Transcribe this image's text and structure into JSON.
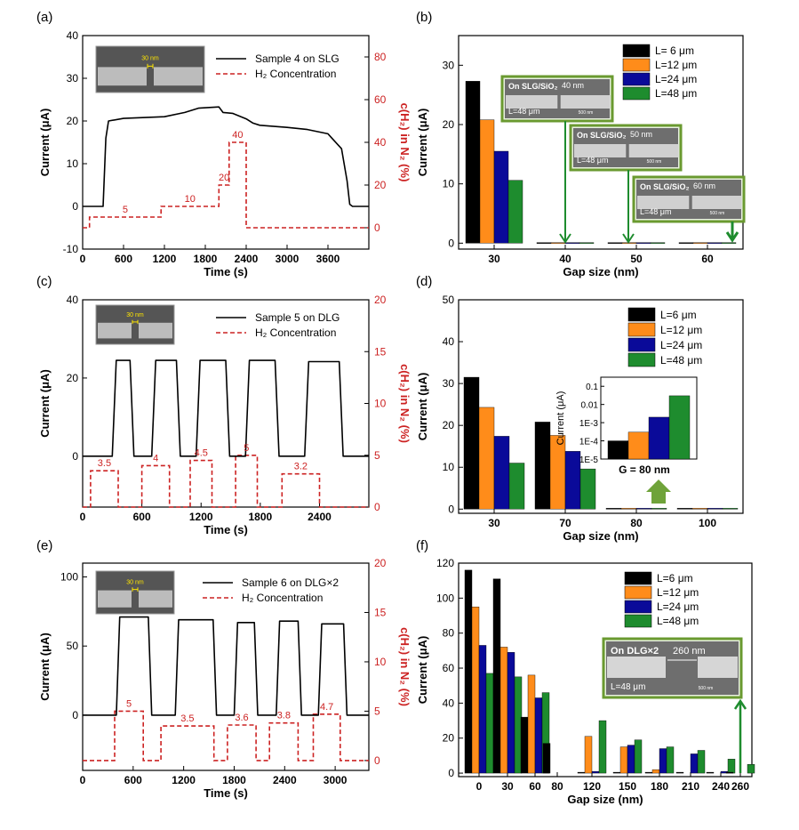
{
  "colors": {
    "axis": "#000000",
    "h2": "#cc2222",
    "black": "#000000",
    "orange": "#ff8c1a",
    "blue": "#0a0a99",
    "green": "#1e8c2e",
    "inset_border": "#6a9a30",
    "sem_bg": "#555555"
  },
  "panels": {
    "a": {
      "label": "(a)"
    },
    "b": {
      "label": "(b)"
    },
    "c": {
      "label": "(c)"
    },
    "d": {
      "label": "(d)"
    },
    "e": {
      "label": "(e)"
    },
    "f": {
      "label": "(f)"
    }
  },
  "insets": {
    "a_sem": "30 nm",
    "c_sem": "30 nm",
    "e_sem": "30 nm",
    "b1_title": "On SLG/SiO₂",
    "b1_gap": "40 nm",
    "b1_len": "L=48 μm",
    "b2_title": "On SLG/SiO₂",
    "b2_gap": "50 nm",
    "b2_len": "L=48 μm",
    "b3_title": "On SLG/SiO₂",
    "b3_gap": "60 nm",
    "b3_len": "L=48 μm",
    "f_title": "On DLG×2",
    "f_gap": "260 nm",
    "f_len": "L=48 μm",
    "scale": "500 nm"
  },
  "chart_data": [
    {
      "panel": "a",
      "type": "line",
      "xlabel": "Time (s)",
      "ylabel": "Current (μA)",
      "y2label": "c(H₂) in N₂ (%)",
      "xlim": [
        0,
        4200
      ],
      "ylim": [
        -10,
        40
      ],
      "y2lim": [
        -10,
        90
      ],
      "xticks": [
        0,
        600,
        1200,
        1800,
        2400,
        3000,
        3600
      ],
      "yticks": [
        -10,
        0,
        10,
        20,
        30,
        40
      ],
      "y2ticks": [
        0,
        20,
        40,
        60,
        80
      ],
      "legend": [
        "Sample 4 on SLG",
        "H₂ Concentration"
      ],
      "current": {
        "x": [
          0,
          300,
          340,
          380,
          600,
          1200,
          1500,
          1700,
          2000,
          2060,
          2200,
          2400,
          2500,
          2600,
          3000,
          3300,
          3600,
          3800,
          3880,
          3920,
          3960,
          4200
        ],
        "y": [
          0,
          0,
          16,
          20,
          20.6,
          21,
          22,
          23,
          23.3,
          22,
          21.8,
          20.5,
          19.5,
          19,
          18.5,
          18,
          17,
          13.5,
          6,
          0.5,
          0,
          0
        ]
      },
      "h2": {
        "x": [
          0,
          100,
          100,
          1150,
          1150,
          2000,
          2000,
          2150,
          2150,
          2400,
          2400,
          4200
        ],
        "y": [
          0,
          0,
          5,
          5,
          10,
          10,
          20,
          20,
          40,
          40,
          0,
          0
        ]
      },
      "annotations": [
        "5",
        "10",
        "20",
        "40"
      ]
    },
    {
      "panel": "b",
      "type": "bar",
      "xlabel": "Gap size (nm)",
      "ylabel": "Current (μA)",
      "categories": [
        "30",
        "40",
        "50",
        "60"
      ],
      "ylim": [
        -1,
        35
      ],
      "yticks": [
        0,
        10,
        20,
        30
      ],
      "series": [
        {
          "name": "L= 6  μm",
          "values": [
            27.3,
            0.1,
            0.1,
            0.1
          ]
        },
        {
          "name": "L=12  μm",
          "values": [
            20.8,
            0.1,
            0.1,
            0.1
          ]
        },
        {
          "name": "L=24  μm",
          "values": [
            15.5,
            0.1,
            0.1,
            0.1
          ]
        },
        {
          "name": "L=48  μm",
          "values": [
            10.6,
            0.1,
            0.1,
            0.1
          ]
        }
      ]
    },
    {
      "panel": "c",
      "type": "line",
      "xlabel": "Time (s)",
      "ylabel": "Current (μA)",
      "y2label": "c(H₂) in N₂ (%)",
      "xlim": [
        0,
        2900
      ],
      "ylim": [
        -13,
        40
      ],
      "y2lim": [
        0,
        20
      ],
      "xticks": [
        0,
        600,
        1200,
        1800,
        2400
      ],
      "yticks": [
        0,
        20,
        40
      ],
      "y2ticks": [
        0,
        5,
        10,
        15,
        20
      ],
      "legend": [
        "Sample 5 on DLG",
        "H₂ Concentration"
      ],
      "current": {
        "x": [
          0,
          300,
          340,
          480,
          520,
          700,
          740,
          950,
          990,
          1150,
          1190,
          1450,
          1490,
          1650,
          1690,
          1950,
          1990,
          2250,
          2290,
          2600,
          2640,
          2900
        ],
        "y": [
          0,
          0,
          24.5,
          24.5,
          0,
          0,
          24.5,
          24.5,
          0,
          0,
          24.5,
          24.5,
          0,
          0,
          24.5,
          24.5,
          0,
          0,
          24.2,
          24.2,
          0,
          0
        ],
        "rounded": true
      },
      "h2": {
        "x": [
          0,
          80,
          80,
          360,
          360,
          600,
          600,
          880,
          880,
          1090,
          1090,
          1310,
          1310,
          1550,
          1550,
          1770,
          1770,
          2020,
          2020,
          2400,
          2400,
          2900
        ],
        "y": [
          0,
          0,
          3.5,
          3.5,
          0,
          0,
          4,
          4,
          0,
          0,
          4.5,
          4.5,
          0,
          0,
          5,
          5,
          0,
          0,
          3.2,
          3.2,
          0,
          0
        ]
      },
      "annotations": [
        "3.5",
        "4",
        "4.5",
        "5",
        "3.2"
      ]
    },
    {
      "panel": "d",
      "type": "bar",
      "xlabel": "Gap size (nm)",
      "ylabel": "Current (μA)",
      "categories": [
        "30",
        "70",
        "80",
        "100"
      ],
      "ylim": [
        -1,
        50
      ],
      "yticks": [
        0,
        10,
        20,
        30,
        40,
        50
      ],
      "series": [
        {
          "name": "L=6  μm",
          "values": [
            31.5,
            20.8,
            0.2,
            0.2
          ]
        },
        {
          "name": "L=12  μm",
          "values": [
            24.3,
            17.6,
            0.2,
            0.2
          ]
        },
        {
          "name": "L=24  μm",
          "values": [
            17.4,
            13.8,
            0.2,
            0.2
          ]
        },
        {
          "name": "L=48  μm",
          "values": [
            11,
            9.6,
            0.2,
            0.2
          ]
        }
      ],
      "inset": {
        "type": "bar",
        "scale": "log",
        "ylabel": "Current (μA)",
        "xlabel": "G = 80 nm",
        "ylim_exp": [
          -5,
          -0.5
        ],
        "yticks": [
          "1E-5",
          "1E-4",
          "1E-3",
          "0.01",
          "0.1"
        ],
        "values": [
          0.0001,
          0.0003,
          0.002,
          0.03
        ]
      }
    },
    {
      "panel": "e",
      "type": "line",
      "xlabel": "Time (s)",
      "ylabel": "Current (μA)",
      "y2label": "c(H₂) in N₂ (%)",
      "xlim": [
        0,
        3400
      ],
      "ylim": [
        -40,
        110
      ],
      "y2lim": [
        -1,
        20
      ],
      "xticks": [
        0,
        600,
        1200,
        1800,
        2400,
        3000
      ],
      "yticks": [
        0,
        50,
        100
      ],
      "y2ticks": [
        0,
        5,
        10,
        15,
        20
      ],
      "legend": [
        "Sample 6 on DLG×2",
        "H₂ Concentration"
      ],
      "current": {
        "x": [
          0,
          400,
          440,
          780,
          820,
          1100,
          1140,
          1550,
          1590,
          1800,
          1840,
          2040,
          2080,
          2300,
          2340,
          2560,
          2600,
          2800,
          2840,
          3100,
          3140,
          3400
        ],
        "y": [
          0,
          0,
          71,
          71,
          0,
          0,
          69,
          69,
          0,
          0,
          67,
          67,
          0,
          0,
          68,
          68,
          0,
          0,
          66,
          66,
          0,
          0
        ],
        "rounded": true
      },
      "h2": {
        "x": [
          0,
          380,
          380,
          720,
          720,
          930,
          930,
          1560,
          1560,
          1720,
          1720,
          2060,
          2060,
          2220,
          2220,
          2560,
          2560,
          2740,
          2740,
          3060,
          3060,
          3400
        ],
        "y": [
          0,
          0,
          5,
          5,
          0,
          0,
          3.5,
          3.5,
          0,
          0,
          3.6,
          3.6,
          0,
          0,
          3.8,
          3.8,
          0,
          0,
          4.7,
          4.7,
          0,
          0
        ]
      },
      "annotations": [
        "5",
        "3.5",
        "3.6",
        "3.8",
        "4.7"
      ]
    },
    {
      "panel": "f",
      "type": "bar",
      "xlabel": "Gap size (nm)",
      "ylabel": "Current (μA)",
      "categories": [
        "0",
        "30",
        "60",
        "80",
        "120",
        "150",
        "180",
        "210",
        "240",
        "260"
      ],
      "ylim": [
        -2,
        120
      ],
      "yticks": [
        0,
        20,
        40,
        60,
        80,
        100,
        120
      ],
      "series": [
        {
          "name": "L=6  μm",
          "values": [
            116,
            111,
            32,
            17,
            0.5,
            0.5,
            0.5,
            0.5,
            0.5,
            0.5
          ]
        },
        {
          "name": "L=12  μm",
          "values": [
            95,
            72,
            56,
            null,
            21,
            15,
            2,
            null,
            null,
            null
          ]
        },
        {
          "name": "L=24  μm",
          "values": [
            73,
            69,
            43,
            null,
            1,
            16,
            14,
            11,
            1,
            null
          ]
        },
        {
          "name": "L=48  μm",
          "values": [
            57,
            55,
            46,
            null,
            30,
            19,
            15,
            13,
            8,
            5
          ]
        }
      ]
    }
  ]
}
